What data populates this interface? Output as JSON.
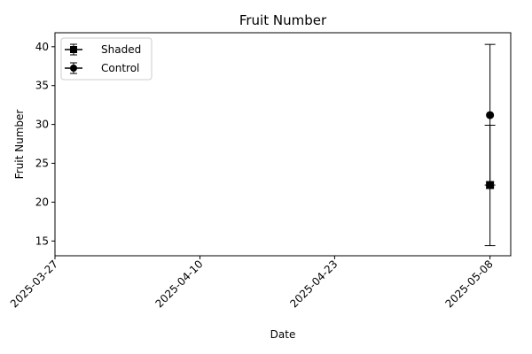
{
  "chart_data": {
    "type": "scatter",
    "title": "Fruit Number",
    "xlabel": "Date",
    "ylabel": "Fruit Number",
    "x_ticks": [
      "2025-03-27",
      "2025-04-10",
      "2025-04-23",
      "2025-05-08"
    ],
    "y_ticks": [
      15,
      20,
      25,
      30,
      35,
      40
    ],
    "xlim": [
      "2025-03-27",
      "2025-05-10"
    ],
    "ylim": [
      13.1,
      41.8
    ],
    "legend_placement": "top-left",
    "grid": false,
    "series": [
      {
        "name": "Shaded",
        "marker": "square",
        "color": "#000000",
        "points": [
          {
            "x": "2025-05-08",
            "y": 22.2,
            "yerr_low": 14.4,
            "yerr_high": 29.9
          }
        ]
      },
      {
        "name": "Control",
        "marker": "circle",
        "color": "#000000",
        "points": [
          {
            "x": "2025-05-08",
            "y": 31.2,
            "yerr_low": 22.2,
            "yerr_high": 40.3
          }
        ]
      }
    ]
  }
}
